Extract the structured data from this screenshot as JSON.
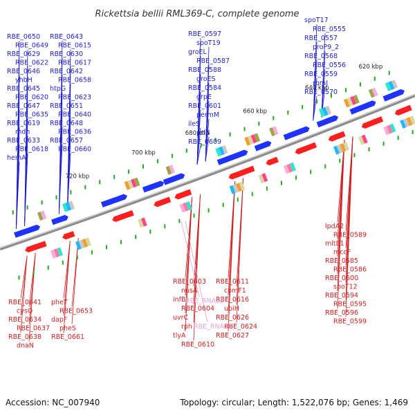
{
  "title": "Rickettsia bellii RML369-C, complete genome",
  "accession_label": "Accession: NC_007940",
  "summary_label": "Topology: circular; Length: 1,522,076 bp; Genes: 1,469",
  "colors": {
    "forward_label": "#1f1fcc",
    "reverse_label": "#cc1f1f",
    "rna_label": "#e8a0cf",
    "forward_feature": "#1f33ff",
    "reverse_feature": "#ff1f1f",
    "backbone": "#8c8c8c"
  },
  "scale_ticks": [
    "620 kbp",
    "640 kbp",
    "660 kbp",
    "680 kbp",
    "700 kbp",
    "720 kbp"
  ],
  "forward_labels": [
    "spoT17",
    "RBE_0555",
    "RBE_0557",
    "proP9_2",
    "RBE_0568",
    "RBE_0556",
    "RBE_0559",
    "rpmJ",
    "RBE_0570",
    "RBE_0597",
    "spoT19",
    "groEL",
    "RBE_0587",
    "RBE_0588",
    "groES",
    "RBE_0584",
    "grpE",
    "RBE_0601",
    "permM",
    "ileS",
    "prfB",
    "RBE_0609",
    "RBE_0650",
    "RBE_0649",
    "RBE_0629",
    "RBE_0622",
    "RBE_0646",
    "yhbH",
    "RBE_0645",
    "RBE_0620",
    "RBE_0647",
    "RBE_0635",
    "RBE_0619",
    "mdh",
    "RBE_0633",
    "RBE_0618",
    "hemA",
    "RBE_0643",
    "RBE_0615",
    "RBE_0630",
    "RBE_0617",
    "RBE_0642",
    "RBE_0658",
    "htpG",
    "RBE_0623",
    "RBE_0651",
    "RBE_0640",
    "RBE_0648",
    "RBE_0636",
    "RBE_0657",
    "RBE_0660"
  ],
  "reverse_labels": [
    "lpdA2",
    "RBE_0589",
    "mltE1",
    "mccF",
    "RBE_0585",
    "RBE_0586",
    "RBE_0600",
    "spoT12",
    "RBE_0594",
    "RBE_0595",
    "RBE_0596",
    "RBE_0599",
    "RBE_0603",
    "nusA",
    "infB",
    "RBE_0604",
    "uvrC",
    "rph",
    "tlyA",
    "RBE_0610",
    "RBE_0611",
    "comF1",
    "RBE_0616",
    "ubiH",
    "RBE_0626",
    "RBE_0624",
    "RBE_0627",
    "RBE_0641",
    "cysQ",
    "RBE_0634",
    "RBE_0637",
    "RBE_0638",
    "dnaN",
    "pheT",
    "RBE_0653",
    "dapF",
    "pheS",
    "RBE_0661"
  ],
  "rna_labels": [
    "RBE_RNA18",
    "RBE_RNA17"
  ]
}
